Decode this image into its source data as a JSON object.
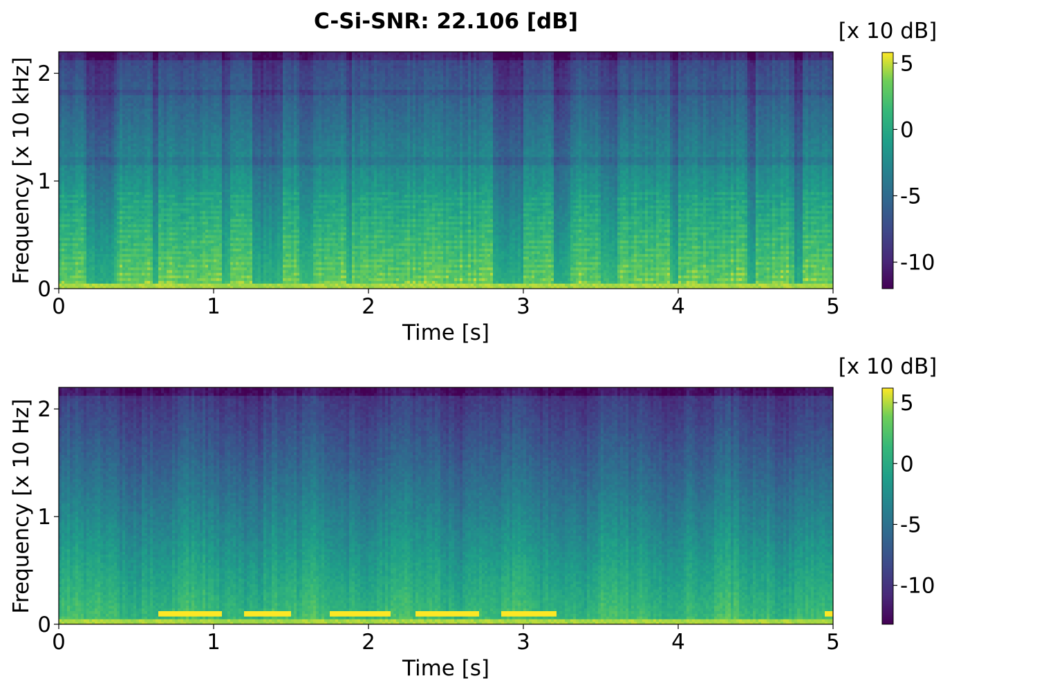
{
  "chart_data": [
    {
      "type": "heatmap",
      "panel": "top",
      "title": "C-Si-SNR: 22.106 [dB]",
      "xlabel": "Time [s]",
      "ylabel": "Frequency [x 10 kHz]",
      "xlim": [
        0,
        5
      ],
      "ylim": [
        0,
        2.2
      ],
      "x_ticks": [
        0,
        1,
        2,
        3,
        4,
        5
      ],
      "x_tick_labels": [
        "0",
        "1",
        "2",
        "3",
        "4",
        "5"
      ],
      "y_ticks": [
        0,
        1,
        2
      ],
      "y_tick_labels": [
        "0",
        "1",
        "2"
      ],
      "colormap": "viridis",
      "colorbar": {
        "unit_label": "[x 10 dB]",
        "range": [
          -12,
          5.8
        ],
        "ticks": [
          5,
          0,
          -5,
          -10
        ],
        "tick_labels": [
          "5",
          "0",
          "-5",
          "-10"
        ]
      },
      "loud_segments_s": [
        [
          0.0,
          0.17
        ],
        [
          0.38,
          0.6
        ],
        [
          0.65,
          1.05
        ],
        [
          1.1,
          1.25
        ],
        [
          1.45,
          1.55
        ],
        [
          1.65,
          1.85
        ],
        [
          1.9,
          2.8
        ],
        [
          3.0,
          3.2
        ],
        [
          3.3,
          3.5
        ],
        [
          3.6,
          3.95
        ],
        [
          4.0,
          4.45
        ],
        [
          4.5,
          4.75
        ],
        [
          4.8,
          5.0
        ]
      ],
      "quiet_segments_s": [
        [
          0.2,
          0.35
        ],
        [
          1.25,
          1.4
        ],
        [
          2.8,
          3.0
        ],
        [
          3.2,
          3.3
        ],
        [
          4.45,
          4.5
        ],
        [
          4.75,
          4.8
        ]
      ]
    },
    {
      "type": "heatmap",
      "panel": "bottom",
      "xlabel": "Time [s]",
      "ylabel": "Frequency [x 10 Hz]",
      "xlim": [
        0,
        5
      ],
      "ylim": [
        0,
        2.2
      ],
      "x_ticks": [
        0,
        1,
        2,
        3,
        4,
        5
      ],
      "x_tick_labels": [
        "0",
        "1",
        "2",
        "3",
        "4",
        "5"
      ],
      "y_ticks": [
        0,
        1,
        2
      ],
      "y_tick_labels": [
        "0",
        "1",
        "2"
      ],
      "colormap": "viridis",
      "colorbar": {
        "unit_label": "[x 10 dB]",
        "range": [
          -13.2,
          6.2
        ],
        "ticks": [
          5,
          0,
          -5,
          -10
        ],
        "tick_labels": [
          "5",
          "0",
          "-5",
          "-10"
        ]
      },
      "tone_segments_s": [
        [
          0.65,
          1.05
        ],
        [
          1.2,
          1.5
        ],
        [
          1.75,
          2.15
        ],
        [
          2.3,
          2.72
        ],
        [
          2.85,
          3.22
        ],
        [
          4.95,
          5.0
        ]
      ]
    }
  ],
  "colors": {
    "viridis_low": "#440154",
    "viridis_mid": "#21918c",
    "viridis_high": "#fde725"
  }
}
